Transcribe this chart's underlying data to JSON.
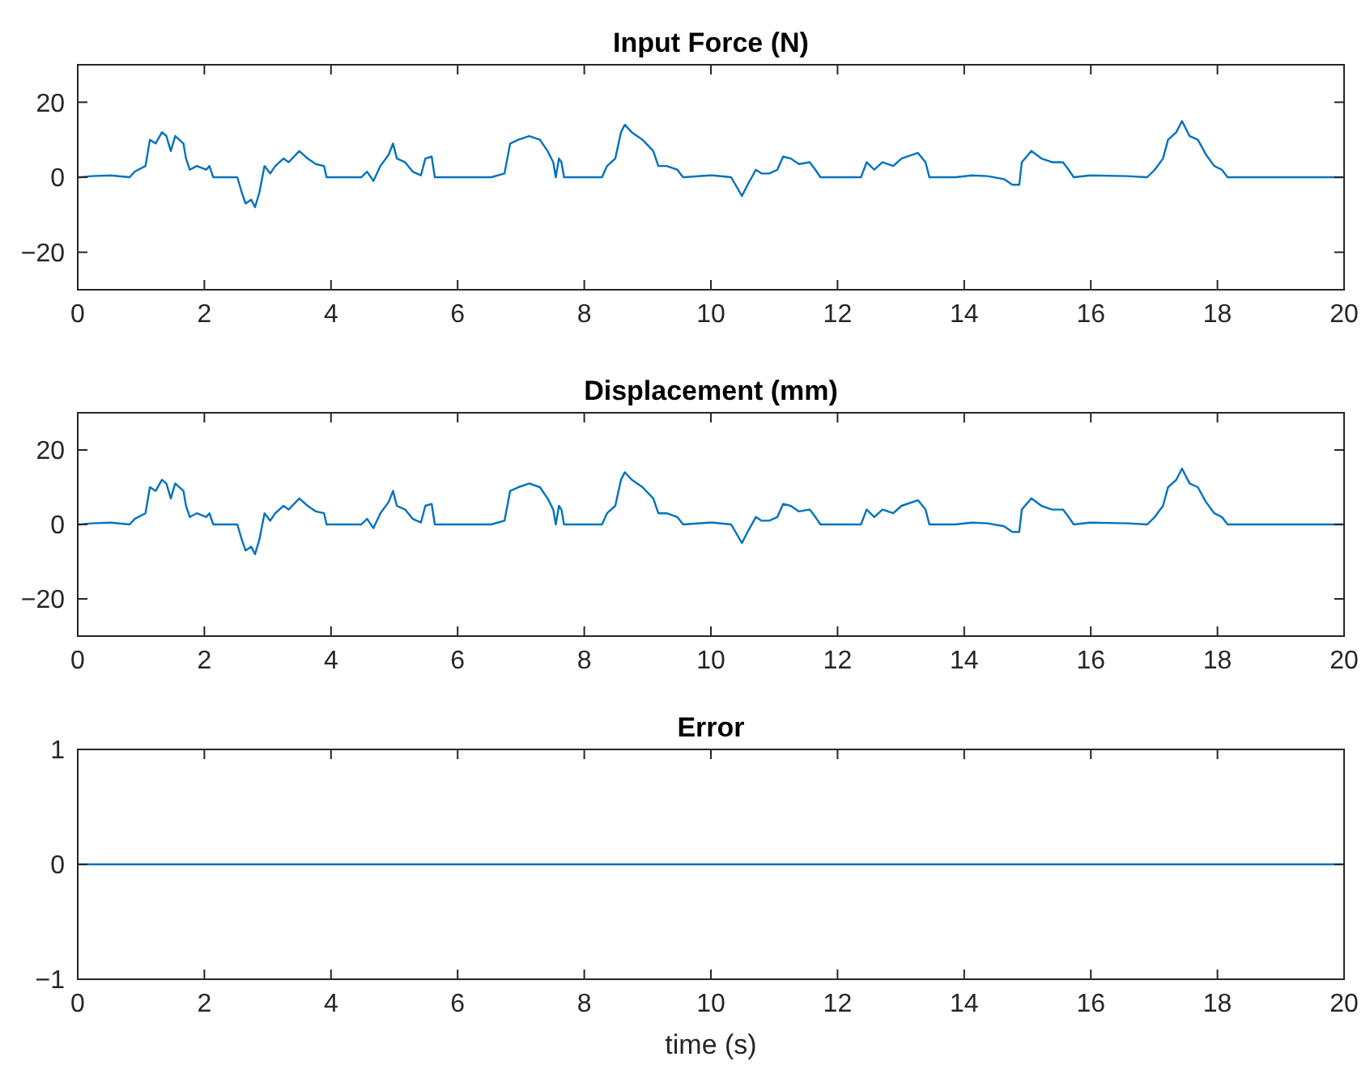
{
  "chart_data": [
    {
      "type": "line",
      "title": "Input Force (N)",
      "xlim": [
        0,
        20
      ],
      "xticks": [
        0,
        2,
        4,
        6,
        8,
        10,
        12,
        14,
        16,
        18,
        20
      ],
      "ylim": [
        -30,
        30
      ],
      "yticks": [
        -20,
        0,
        20
      ],
      "grid": false,
      "line_style": "solid",
      "series": [
        {
          "color": "#0072bd",
          "x": [
            0,
            0.05,
            0.22,
            0.52,
            0.82,
            0.9,
            1.07,
            1.14,
            1.23,
            1.33,
            1.4,
            1.47,
            1.54,
            1.67,
            1.71,
            1.77,
            1.88,
            2.03,
            2.08,
            2.14,
            2.52,
            2.59,
            2.65,
            2.74,
            2.8,
            2.87,
            2.95,
            3.04,
            3.12,
            3.25,
            3.33,
            3.5,
            3.63,
            3.76,
            3.89,
            3.93,
            4.48,
            4.57,
            4.67,
            4.78,
            4.91,
            4.98,
            5.04,
            5.17,
            5.29,
            5.42,
            5.49,
            5.59,
            5.64,
            6.53,
            6.74,
            6.83,
            6.96,
            7.13,
            7.3,
            7.42,
            7.51,
            7.55,
            7.6,
            7.64,
            7.68,
            8.28,
            8.36,
            8.49,
            8.58,
            8.64,
            8.75,
            8.92,
            9.09,
            9.17,
            9.3,
            9.47,
            9.56,
            9.98,
            10.03,
            10.32,
            10.49,
            10.58,
            10.71,
            10.8,
            10.92,
            11.05,
            11.14,
            11.26,
            11.39,
            11.56,
            11.65,
            11.73,
            12.37,
            12.46,
            12.58,
            12.71,
            12.88,
            13.01,
            13.27,
            13.39,
            13.45,
            13.86,
            14.12,
            14.37,
            14.63,
            14.76,
            14.87,
            14.91,
            15.06,
            15.22,
            15.39,
            15.56,
            15.65,
            15.73,
            15.99,
            16.58,
            16.89,
            17.01,
            17.14,
            17.22,
            17.35,
            17.44,
            17.56,
            17.69,
            17.82,
            17.95,
            18.07,
            18.16,
            20
          ],
          "values": [
            0,
            0,
            0.3,
            0.5,
            0,
            1.5,
            3,
            10,
            9,
            12,
            11,
            7,
            11,
            9,
            5,
            2,
            3,
            2,
            3,
            0,
            0,
            -4,
            -7,
            -6,
            -8,
            -4,
            3,
            1,
            3,
            5,
            4,
            7,
            5,
            3.5,
            3,
            0,
            0,
            1.5,
            -1,
            3,
            6,
            9,
            5,
            4,
            1.5,
            0.5,
            5,
            5.5,
            0,
            0,
            1,
            9,
            10,
            11,
            10,
            7,
            4,
            0,
            5,
            4,
            0,
            0,
            3,
            5,
            12,
            14,
            12,
            10,
            7,
            3,
            3,
            2,
            0,
            0.5,
            0.5,
            0,
            -5,
            -2,
            2,
            1,
            1,
            2,
            5.5,
            5,
            3.5,
            4,
            2,
            0,
            0,
            4,
            2,
            4,
            3,
            5,
            6.5,
            4,
            0,
            0,
            0.5,
            0.3,
            -0.5,
            -2,
            -2,
            4,
            7,
            5,
            4,
            4,
            2,
            0,
            0.5,
            0.3,
            0,
            2,
            5,
            10,
            12,
            15,
            11,
            10,
            6,
            3,
            2,
            0,
            0
          ]
        }
      ]
    },
    {
      "type": "line",
      "title": "Displacement (mm)",
      "xlim": [
        0,
        20
      ],
      "xticks": [
        0,
        2,
        4,
        6,
        8,
        10,
        12,
        14,
        16,
        18,
        20
      ],
      "ylim": [
        -30,
        30
      ],
      "yticks": [
        -20,
        0,
        20
      ],
      "grid": false,
      "line_style": "solid",
      "series": [
        {
          "color": "#0072bd",
          "x": [
            0,
            0.05,
            0.22,
            0.52,
            0.82,
            0.9,
            1.07,
            1.14,
            1.23,
            1.33,
            1.4,
            1.47,
            1.54,
            1.67,
            1.71,
            1.77,
            1.88,
            2.03,
            2.08,
            2.14,
            2.52,
            2.59,
            2.65,
            2.74,
            2.8,
            2.87,
            2.95,
            3.04,
            3.12,
            3.25,
            3.33,
            3.5,
            3.63,
            3.76,
            3.89,
            3.93,
            4.48,
            4.57,
            4.67,
            4.78,
            4.91,
            4.98,
            5.04,
            5.17,
            5.29,
            5.42,
            5.49,
            5.59,
            5.64,
            6.53,
            6.74,
            6.83,
            6.96,
            7.13,
            7.3,
            7.42,
            7.51,
            7.55,
            7.6,
            7.64,
            7.68,
            8.28,
            8.36,
            8.49,
            8.58,
            8.64,
            8.75,
            8.92,
            9.09,
            9.17,
            9.3,
            9.47,
            9.56,
            9.98,
            10.03,
            10.32,
            10.49,
            10.58,
            10.71,
            10.8,
            10.92,
            11.05,
            11.14,
            11.26,
            11.39,
            11.56,
            11.65,
            11.73,
            12.37,
            12.46,
            12.58,
            12.71,
            12.88,
            13.01,
            13.27,
            13.39,
            13.45,
            13.86,
            14.12,
            14.37,
            14.63,
            14.76,
            14.87,
            14.91,
            15.06,
            15.22,
            15.39,
            15.56,
            15.65,
            15.73,
            15.99,
            16.58,
            16.89,
            17.01,
            17.14,
            17.22,
            17.35,
            17.44,
            17.56,
            17.69,
            17.82,
            17.95,
            18.07,
            18.16,
            20
          ],
          "values": [
            0,
            0,
            0.3,
            0.5,
            0,
            1.5,
            3,
            10,
            9,
            12,
            11,
            7,
            11,
            9,
            5,
            2,
            3,
            2,
            3,
            0,
            0,
            -4,
            -7,
            -6,
            -8,
            -4,
            3,
            1,
            3,
            5,
            4,
            7,
            5,
            3.5,
            3,
            0,
            0,
            1.5,
            -1,
            3,
            6,
            9,
            5,
            4,
            1.5,
            0.5,
            5,
            5.5,
            0,
            0,
            1,
            9,
            10,
            11,
            10,
            7,
            4,
            0,
            5,
            4,
            0,
            0,
            3,
            5,
            12,
            14,
            12,
            10,
            7,
            3,
            3,
            2,
            0,
            0.5,
            0.5,
            0,
            -5,
            -2,
            2,
            1,
            1,
            2,
            5.5,
            5,
            3.5,
            4,
            2,
            0,
            0,
            4,
            2,
            4,
            3,
            5,
            6.5,
            4,
            0,
            0,
            0.5,
            0.3,
            -0.5,
            -2,
            -2,
            4,
            7,
            5,
            4,
            4,
            2,
            0,
            0.5,
            0.3,
            0,
            2,
            5,
            10,
            12,
            15,
            11,
            10,
            6,
            3,
            2,
            0,
            0
          ]
        }
      ]
    },
    {
      "type": "line",
      "title": "Error",
      "xlabel": "time (s)",
      "xlim": [
        0,
        20
      ],
      "xticks": [
        0,
        2,
        4,
        6,
        8,
        10,
        12,
        14,
        16,
        18,
        20
      ],
      "ylim": [
        -1,
        1
      ],
      "yticks": [
        -1,
        0,
        1
      ],
      "grid": false,
      "line_style": "solid",
      "series": [
        {
          "color": "#0072bd",
          "x": [
            0,
            20
          ],
          "values": [
            0,
            0
          ]
        }
      ]
    }
  ]
}
